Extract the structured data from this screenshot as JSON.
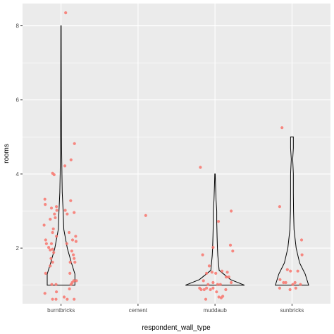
{
  "chart_data": {
    "type": "violin",
    "xlabel": "respondent_wall_type",
    "ylabel": "rooms",
    "categories": [
      "burntbricks",
      "cement",
      "muddaub",
      "sunbricks"
    ],
    "ylim": [
      0.5,
      8.6
    ],
    "yticks": [
      2,
      4,
      6,
      8
    ],
    "grid": true,
    "colors": {
      "panel": "#EBEBEB",
      "grid": "#FFFFFF",
      "points": "#F8766D",
      "violin": "#000000"
    },
    "violins": [
      {
        "category": "burntbricks",
        "profile": [
          [
            1,
            0.4
          ],
          [
            1.3,
            0.4
          ],
          [
            1.6,
            0.3
          ],
          [
            2,
            0.18
          ],
          [
            2.5,
            0.08
          ],
          [
            3,
            0.06
          ],
          [
            3.5,
            0.035
          ],
          [
            4,
            0.025
          ],
          [
            5,
            0.012
          ],
          [
            6,
            0.008
          ],
          [
            7,
            0.006
          ],
          [
            8,
            0.004
          ]
        ]
      },
      {
        "category": "muddaub",
        "profile": [
          [
            1,
            0.85
          ],
          [
            1.15,
            0.45
          ],
          [
            1.4,
            0.12
          ],
          [
            1.8,
            0.08
          ],
          [
            2,
            0.07
          ],
          [
            2.3,
            0.06
          ],
          [
            2.7,
            0.05
          ],
          [
            3,
            0.05
          ],
          [
            3.3,
            0.03
          ],
          [
            3.7,
            0.015
          ],
          [
            4,
            0.006
          ]
        ]
      },
      {
        "category": "sunbricks",
        "profile": [
          [
            1,
            0.48
          ],
          [
            1.3,
            0.38
          ],
          [
            1.6,
            0.22
          ],
          [
            2,
            0.12
          ],
          [
            2.5,
            0.06
          ],
          [
            3,
            0.045
          ],
          [
            3.5,
            0.04
          ],
          [
            4,
            0.04
          ],
          [
            4.4,
            0.02
          ],
          [
            4.7,
            0.04
          ],
          [
            5,
            0.04
          ]
        ]
      }
    ],
    "points": [
      {
        "category": "burntbricks",
        "dx": 0.12,
        "y": 8.35
      },
      {
        "category": "burntbricks",
        "dx": 0.35,
        "y": 4.82
      },
      {
        "category": "burntbricks",
        "dx": 0.26,
        "y": 4.38
      },
      {
        "category": "burntbricks",
        "dx": 0.1,
        "y": 4.22
      },
      {
        "category": "burntbricks",
        "dx": -0.22,
        "y": 4.02
      },
      {
        "category": "burntbricks",
        "dx": -0.18,
        "y": 3.98
      },
      {
        "category": "burntbricks",
        "dx": -0.42,
        "y": 3.32
      },
      {
        "category": "burntbricks",
        "dx": -0.41,
        "y": 3.18
      },
      {
        "category": "burntbricks",
        "dx": -0.12,
        "y": 3.12
      },
      {
        "category": "burntbricks",
        "dx": -0.25,
        "y": 3.08
      },
      {
        "category": "burntbricks",
        "dx": -0.11,
        "y": 3.02
      },
      {
        "category": "burntbricks",
        "dx": 0.25,
        "y": 3.28
      },
      {
        "category": "burntbricks",
        "dx": 0.11,
        "y": 3.02
      },
      {
        "category": "burntbricks",
        "dx": 0.16,
        "y": 2.92
      },
      {
        "category": "burntbricks",
        "dx": 0.34,
        "y": 2.96
      },
      {
        "category": "burntbricks",
        "dx": -0.17,
        "y": 2.92
      },
      {
        "category": "burntbricks",
        "dx": -0.15,
        "y": 2.82
      },
      {
        "category": "burntbricks",
        "dx": -0.44,
        "y": 2.62
      },
      {
        "category": "burntbricks",
        "dx": -0.28,
        "y": 2.78
      },
      {
        "category": "burntbricks",
        "dx": -0.2,
        "y": 2.52
      },
      {
        "category": "burntbricks",
        "dx": -0.22,
        "y": 2.42
      },
      {
        "category": "burntbricks",
        "dx": -0.12,
        "y": 2.32
      },
      {
        "category": "burntbricks",
        "dx": -0.25,
        "y": 2.12
      },
      {
        "category": "burntbricks",
        "dx": -0.4,
        "y": 2.22
      },
      {
        "category": "burntbricks",
        "dx": -0.38,
        "y": 2.12
      },
      {
        "category": "burntbricks",
        "dx": -0.32,
        "y": 2.02
      },
      {
        "category": "burntbricks",
        "dx": -0.28,
        "y": 1.95
      },
      {
        "category": "burntbricks",
        "dx": -0.26,
        "y": 1.72
      },
      {
        "category": "burntbricks",
        "dx": -0.22,
        "y": 1.62
      },
      {
        "category": "burntbricks",
        "dx": -0.28,
        "y": 1.52
      },
      {
        "category": "burntbricks",
        "dx": -0.19,
        "y": 1.88
      },
      {
        "category": "burntbricks",
        "dx": -0.22,
        "y": 1.97
      },
      {
        "category": "burntbricks",
        "dx": 0.15,
        "y": 2.12
      },
      {
        "category": "burntbricks",
        "dx": 0.21,
        "y": 2.42
      },
      {
        "category": "burntbricks",
        "dx": 0.3,
        "y": 2.22
      },
      {
        "category": "burntbricks",
        "dx": 0.38,
        "y": 2.32
      },
      {
        "category": "burntbricks",
        "dx": 0.39,
        "y": 2.18
      },
      {
        "category": "burntbricks",
        "dx": 0.32,
        "y": 1.82
      },
      {
        "category": "burntbricks",
        "dx": 0.34,
        "y": 1.72
      },
      {
        "category": "burntbricks",
        "dx": 0.36,
        "y": 1.62
      },
      {
        "category": "burntbricks",
        "dx": 0.28,
        "y": 1.92
      },
      {
        "category": "burntbricks",
        "dx": 0.24,
        "y": 1.62
      },
      {
        "category": "burntbricks",
        "dx": 0.33,
        "y": 1.12
      },
      {
        "category": "burntbricks",
        "dx": 0.4,
        "y": 1.12
      },
      {
        "category": "burntbricks",
        "dx": 0.29,
        "y": 1.07
      },
      {
        "category": "burntbricks",
        "dx": 0.26,
        "y": 1.02
      },
      {
        "category": "burntbricks",
        "dx": 0.23,
        "y": 1.32
      },
      {
        "category": "burntbricks",
        "dx": -0.4,
        "y": 1.32
      },
      {
        "category": "burntbricks",
        "dx": -0.24,
        "y": 1.02
      },
      {
        "category": "burntbricks",
        "dx": -0.13,
        "y": 1.02
      },
      {
        "category": "burntbricks",
        "dx": -0.42,
        "y": 0.78
      },
      {
        "category": "burntbricks",
        "dx": -0.12,
        "y": 0.82
      },
      {
        "category": "burntbricks",
        "dx": -0.22,
        "y": 0.62
      },
      {
        "category": "burntbricks",
        "dx": -0.13,
        "y": 0.62
      },
      {
        "category": "burntbricks",
        "dx": 0.08,
        "y": 0.68
      },
      {
        "category": "burntbricks",
        "dx": 0.16,
        "y": 0.62
      },
      {
        "category": "burntbricks",
        "dx": 0.34,
        "y": 0.62
      },
      {
        "category": "burntbricks",
        "dx": 0.22,
        "y": 0.9
      },
      {
        "category": "cement",
        "dx": 0.2,
        "y": 2.88
      },
      {
        "category": "muddaub",
        "dx": -0.38,
        "y": 4.18
      },
      {
        "category": "muddaub",
        "dx": 0.42,
        "y": 3.0
      },
      {
        "category": "muddaub",
        "dx": 0.09,
        "y": 2.72
      },
      {
        "category": "muddaub",
        "dx": 0.4,
        "y": 2.08
      },
      {
        "category": "muddaub",
        "dx": 0.46,
        "y": 1.92
      },
      {
        "category": "muddaub",
        "dx": -0.05,
        "y": 2.02
      },
      {
        "category": "muddaub",
        "dx": -0.32,
        "y": 1.82
      },
      {
        "category": "muddaub",
        "dx": -0.15,
        "y": 1.52
      },
      {
        "category": "muddaub",
        "dx": -0.22,
        "y": 1.32
      },
      {
        "category": "muddaub",
        "dx": -0.08,
        "y": 1.35
      },
      {
        "category": "muddaub",
        "dx": 0.02,
        "y": 1.32
      },
      {
        "category": "muddaub",
        "dx": 0.18,
        "y": 1.38
      },
      {
        "category": "muddaub",
        "dx": 0.32,
        "y": 1.35
      },
      {
        "category": "muddaub",
        "dx": 0.29,
        "y": 1.22
      },
      {
        "category": "muddaub",
        "dx": -0.18,
        "y": 1.02
      },
      {
        "category": "muddaub",
        "dx": -0.05,
        "y": 1.07
      },
      {
        "category": "muddaub",
        "dx": 0.07,
        "y": 1.02
      },
      {
        "category": "muddaub",
        "dx": 0.14,
        "y": 1.02
      },
      {
        "category": "muddaub",
        "dx": 0.28,
        "y": 0.88
      },
      {
        "category": "muddaub",
        "dx": 0.42,
        "y": 1.07
      },
      {
        "category": "muddaub",
        "dx": -0.4,
        "y": 0.92
      },
      {
        "category": "muddaub",
        "dx": -0.36,
        "y": 0.88
      },
      {
        "category": "muddaub",
        "dx": -0.28,
        "y": 0.88
      },
      {
        "category": "muddaub",
        "dx": -0.22,
        "y": 0.92
      },
      {
        "category": "muddaub",
        "dx": -0.12,
        "y": 0.88
      },
      {
        "category": "muddaub",
        "dx": -0.05,
        "y": 0.92
      },
      {
        "category": "muddaub",
        "dx": 0.04,
        "y": 0.82
      },
      {
        "category": "muddaub",
        "dx": 0.1,
        "y": 0.68
      },
      {
        "category": "muddaub",
        "dx": 0.16,
        "y": 0.66
      },
      {
        "category": "muddaub",
        "dx": 0.2,
        "y": 0.7
      },
      {
        "category": "muddaub",
        "dx": -0.24,
        "y": 0.62
      },
      {
        "category": "muddaub",
        "dx": -0.3,
        "y": 1.12
      },
      {
        "category": "muddaub",
        "dx": 0.36,
        "y": 1.22
      },
      {
        "category": "sunbricks",
        "dx": -0.26,
        "y": 5.25
      },
      {
        "category": "sunbricks",
        "dx": -0.32,
        "y": 3.12
      },
      {
        "category": "sunbricks",
        "dx": 0.25,
        "y": 2.22
      },
      {
        "category": "sunbricks",
        "dx": 0.26,
        "y": 1.82
      },
      {
        "category": "sunbricks",
        "dx": -0.12,
        "y": 1.42
      },
      {
        "category": "sunbricks",
        "dx": -0.04,
        "y": 1.38
      },
      {
        "category": "sunbricks",
        "dx": 0.15,
        "y": 1.38
      },
      {
        "category": "sunbricks",
        "dx": -0.31,
        "y": 1.15
      },
      {
        "category": "sunbricks",
        "dx": -0.22,
        "y": 1.07
      },
      {
        "category": "sunbricks",
        "dx": -0.16,
        "y": 1.07
      },
      {
        "category": "sunbricks",
        "dx": 0.02,
        "y": 1.02
      },
      {
        "category": "sunbricks",
        "dx": 0.08,
        "y": 1.07
      },
      {
        "category": "sunbricks",
        "dx": 0.22,
        "y": 1.02
      },
      {
        "category": "sunbricks",
        "dx": -0.32,
        "y": 0.92
      },
      {
        "category": "sunbricks",
        "dx": -0.05,
        "y": 0.88
      },
      {
        "category": "sunbricks",
        "dx": 0.1,
        "y": 0.92
      }
    ]
  }
}
